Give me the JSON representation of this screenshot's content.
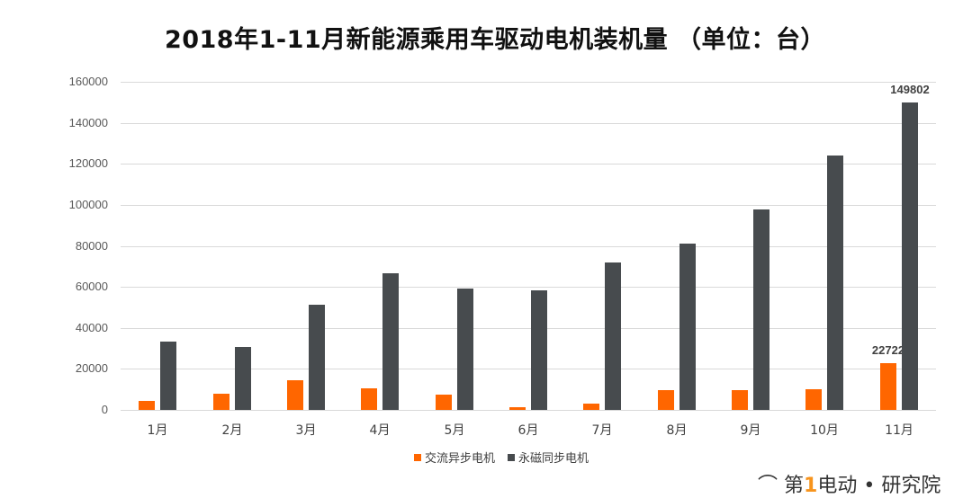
{
  "title": "2018年1-11月新能源乘用车驱动电机装机量 （单位：台）",
  "colors": {
    "ac": "#ff6600",
    "pm": "#474b4e",
    "grid": "#d9d9d9"
  },
  "legend": [
    {
      "label": "交流异步电机",
      "color": "#ff6600"
    },
    {
      "label": "永磁同步电机",
      "color": "#474b4e"
    }
  ],
  "watermark": {
    "prefix": "第",
    "one": "1",
    "suffix": "电动",
    "dot": "•",
    "org": "研究院"
  },
  "chart_data": {
    "type": "bar",
    "title": "2018年1-11月新能源乘用车驱动电机装机量 （单位：台）",
    "xlabel": "",
    "ylabel": "",
    "ylim": [
      0,
      160000
    ],
    "yticks": [
      0,
      20000,
      40000,
      60000,
      80000,
      100000,
      120000,
      140000,
      160000
    ],
    "grid": true,
    "legend_position": "bottom",
    "categories": [
      "1月",
      "2月",
      "3月",
      "4月",
      "5月",
      "6月",
      "7月",
      "8月",
      "9月",
      "10月",
      "11月"
    ],
    "series": [
      {
        "name": "交流异步电机",
        "color": "#ff6600",
        "values": [
          4400,
          7900,
          14500,
          10500,
          7500,
          1300,
          3100,
          9800,
          9800,
          10300,
          22722
        ]
      },
      {
        "name": "永磁同步电机",
        "color": "#474b4e",
        "values": [
          33300,
          30700,
          51300,
          66700,
          59200,
          58300,
          71900,
          81100,
          97800,
          124100,
          149802
        ]
      }
    ],
    "annotations": [
      {
        "category": "11月",
        "series": "交流异步电机",
        "text": "22722"
      },
      {
        "category": "11月",
        "series": "永磁同步电机",
        "text": "149802"
      }
    ]
  }
}
